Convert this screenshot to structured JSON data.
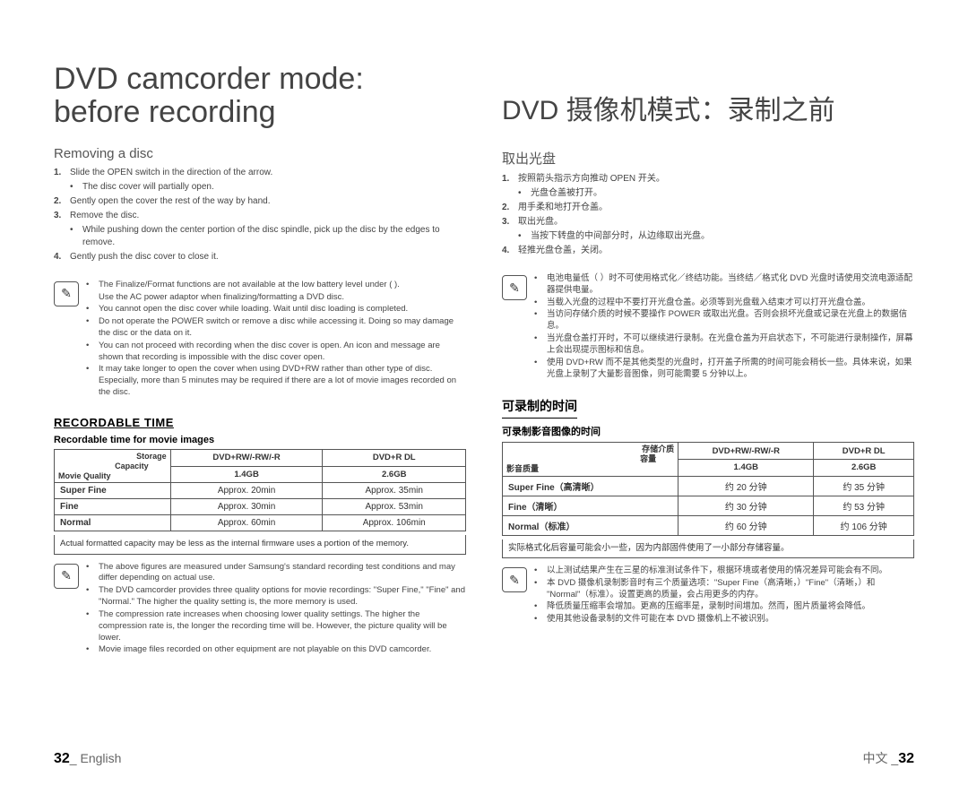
{
  "en": {
    "title1": "DVD camcorder mode:",
    "title2": "before recording",
    "remove_h": "Removing a disc",
    "steps": [
      {
        "n": "1.",
        "t": "Slide the OPEN switch in the direction of the arrow.",
        "sub": "The disc cover will partially open."
      },
      {
        "n": "2.",
        "t": "Gently open the cover the rest of the way by hand."
      },
      {
        "n": "3.",
        "t": "Remove the disc.",
        "sub": "While pushing down the center portion of the disc spindle, pick up the disc by the edges to remove."
      },
      {
        "n": "4.",
        "t": "Gently push the disc cover to close it."
      }
    ],
    "notes1": [
      "The Finalize/Format functions are not available at the low battery level under (      ).",
      "Use the AC power adaptor when finalizing/formatting a DVD disc.",
      "You cannot open the disc cover while loading. Wait until disc loading is completed.",
      "Do not operate the POWER switch or remove a disc while accessing it. Doing so may damage the disc or the data on it.",
      "You can not proceed with recording when the disc cover is open. An icon and message are shown that recording is impossible with the disc cover open.",
      "It may take longer to open the cover when using DVD+RW rather than other type of disc. Especially, more than 5 minutes may be required if there are a lot of movie images recorded on the disc."
    ],
    "rec_h": "RECORDABLE TIME",
    "rec_sub": "Recordable time for movie images",
    "table": {
      "h_storage": "Storage",
      "h_capacity": "Capacity",
      "h_quality": "Movie Quality",
      "c1": "DVD+RW/-RW/-R",
      "c2": "DVD+R DL",
      "c1s": "1.4GB",
      "c2s": "2.6GB",
      "r": [
        [
          "Super Fine",
          "Approx. 20min",
          "Approx. 35min"
        ],
        [
          "Fine",
          "Approx. 30min",
          "Approx. 53min"
        ],
        [
          "Normal",
          "Approx. 60min",
          "Approx. 106min"
        ]
      ]
    },
    "tfoot": "Actual formatted capacity may be less as the internal firmware uses a portion of the memory.",
    "notes2": [
      "The above figures are measured under Samsung's standard recording test conditions and may differ depending on actual use.",
      "The DVD camcorder provides three quality options for movie recordings: \"Super Fine,\" \"Fine\" and \"Normal.\" The higher the quality setting is, the more memory is used.",
      "The compression rate increases when choosing lower quality settings. The higher the compression rate is, the longer the recording time will be. However, the picture quality will be lower.",
      "Movie image files recorded on other equipment are not playable on this DVD camcorder."
    ],
    "pg_n": "32",
    "pg_l": "English"
  },
  "zh": {
    "title": "DVD 摄像机模式：录制之前",
    "remove_h": "取出光盘",
    "steps": [
      {
        "n": "1.",
        "t": "按照箭头指示方向推动 OPEN 开关。",
        "sub": "光盘仓盖被打开。"
      },
      {
        "n": "2.",
        "t": "用手柔和地打开仓盖。"
      },
      {
        "n": "3.",
        "t": "取出光盘。",
        "sub": "当按下转盘的中间部分时，从边缘取出光盘。"
      },
      {
        "n": "4.",
        "t": "轻推光盘仓盖，关闭。"
      }
    ],
    "notes1": [
      "电池电量低（      ）时不可使用格式化／终结功能。当终结／格式化 DVD 光盘时请使用交流电源适配器提供电量。",
      "当载入光盘的过程中不要打开光盘仓盖。必须等到光盘载入结束才可以打开光盘仓盖。",
      "当访问存储介质的时候不要操作 POWER 或取出光盘。否则会损坏光盘或记录在光盘上的数据信息。",
      "当光盘仓盖打开时，不可以继续进行录制。在光盘仓盖为开启状态下，不可能进行录制操作，屏幕上会出现提示图标和信息。",
      "使用 DVD+RW 而不是其他类型的光盘时，打开盖子所需的时间可能会稍长一些。具体来说，如果光盘上录制了大量影音图像，则可能需要 5 分钟以上。"
    ],
    "rec_h": "可录制的时间",
    "rec_sub": "可录制影音图像的时间",
    "table": {
      "h_storage": "存储介质",
      "h_capacity": "容量",
      "h_quality": "影音质量",
      "c1": "DVD+RW/-RW/-R",
      "c2": "DVD+R DL",
      "c1s": "1.4GB",
      "c2s": "2.6GB",
      "r": [
        [
          "Super Fine（高清晰）",
          "约 20 分钟",
          "约 35 分钟"
        ],
        [
          "Fine（清晰）",
          "约 30 分钟",
          "约 53 分钟"
        ],
        [
          "Normal（标准）",
          "约 60 分钟",
          "约 106 分钟"
        ]
      ]
    },
    "tfoot": "实际格式化后容量可能会小一些，因为内部固件使用了一小部分存储容量。",
    "notes2": [
      "以上测试结果产生在三星的标准测试条件下，根据环境或者使用的情况差异可能会有不同。",
      "本 DVD 摄像机录制影音时有三个质量选项：\"Super Fine（高清晰，）\"Fine\"（清晰，）和 \"Normal\"（标准）。设置更高的质量，会占用更多的内存。",
      "降低质量压缩率会增加。更高的压缩率是，录制时间增加。然而，图片质量将会降低。",
      "使用其他设备录制的文件可能在本 DVD 摄像机上不被识别。"
    ],
    "pg_l": "中文",
    "pg_n": "32"
  }
}
